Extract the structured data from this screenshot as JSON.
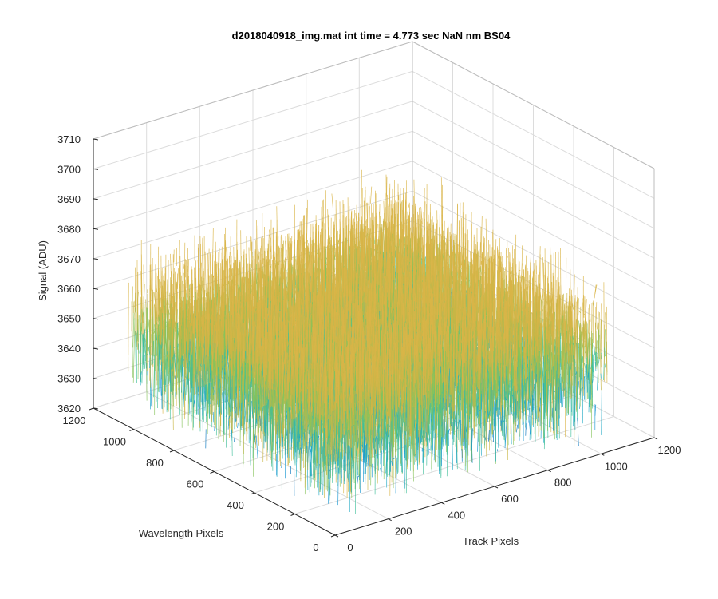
{
  "chart_data": {
    "type": "surface",
    "title": "d2018040918_img.mat int time = 4.773 sec  NaN nm BS04",
    "xlabel": "Track Pixels",
    "ylabel": "Wavelength Pixels",
    "zlabel": "Signal (ADU)",
    "xlim": [
      0,
      1200
    ],
    "ylim": [
      0,
      1200
    ],
    "zlim": [
      3620,
      3710
    ],
    "x_ticks": [
      "0",
      "200",
      "400",
      "600",
      "800",
      "1000",
      "1200"
    ],
    "y_ticks": [
      "0",
      "200",
      "400",
      "600",
      "800",
      "1000",
      "1200"
    ],
    "z_ticks": [
      "3620",
      "3630",
      "3640",
      "3650",
      "3660",
      "3670",
      "3680",
      "3690",
      "3700",
      "3710"
    ],
    "grid": true,
    "data_extent": {
      "x": [
        0,
        1024
      ],
      "y": [
        0,
        1024
      ]
    },
    "signal_mean": 3652,
    "signal_range": [
      3625,
      3700
    ],
    "colormap": [
      "#0072bd",
      "#1696d2",
      "#20a9c4",
      "#3fbf9a",
      "#86c35b",
      "#c9b646",
      "#d9b548"
    ]
  }
}
